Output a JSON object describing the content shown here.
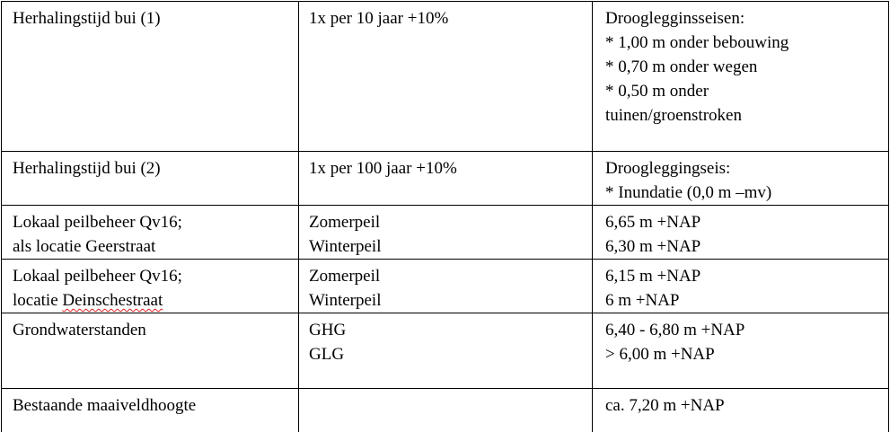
{
  "table": {
    "rows": [
      [
        [
          "Herhalingstijd bui (1)"
        ],
        [
          "1x per 10 jaar +10%"
        ],
        [
          "Drooglegginsseisen:",
          "* 1,00 m onder bebouwing",
          "* 0,70 m onder wegen",
          "* 0,50 m onder",
          "tuinen/groenstroken"
        ]
      ],
      [
        [
          "Herhalingstijd bui (2)"
        ],
        [
          "1x per 100 jaar +10%"
        ],
        [
          "Droogleggingseis:",
          "* Inundatie (0,0 m –mv)"
        ]
      ],
      [
        [
          "Lokaal peilbeheer Qv16;",
          "als locatie Geerstraat"
        ],
        [
          "Zomerpeil",
          "Winterpeil"
        ],
        [
          "6,65 m +NAP",
          "6,30 m +NAP"
        ]
      ],
      [
        [
          "Lokaal peilbeheer Qv16;",
          "locatie Deinschestraat"
        ],
        [
          "Zomerpeil",
          "Winterpeil"
        ],
        [
          "6,15 m +NAP",
          "6 m +NAP"
        ]
      ],
      [
        [
          "Grondwaterstanden"
        ],
        [
          "GHG",
          "GLG"
        ],
        [
          "6,40 - 6,80 m +NAP",
          "> 6,00 m +NAP"
        ]
      ],
      [
        [
          "Bestaande maaiveldhoogte"
        ],
        [],
        [
          "ca. 7,20 m +NAP"
        ]
      ]
    ]
  }
}
